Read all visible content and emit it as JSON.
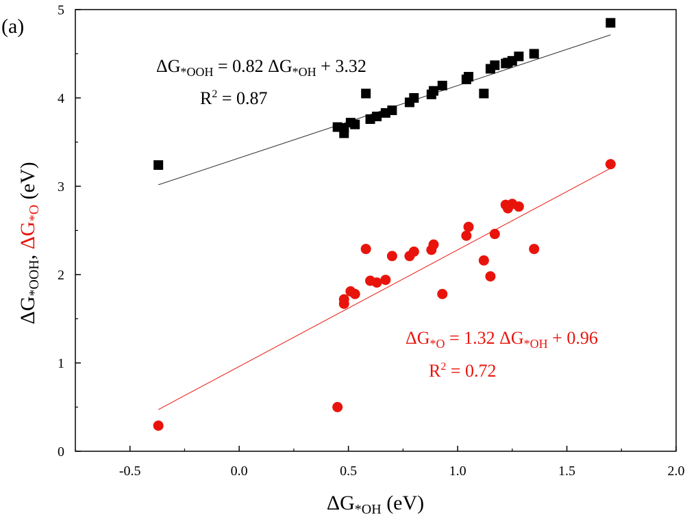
{
  "panel_label": "(a)",
  "chart_data": {
    "type": "scatter",
    "xlim": [
      -0.75,
      2.0
    ],
    "ylim": [
      0,
      5
    ],
    "x_ticks": [
      -0.5,
      0.0,
      0.5,
      1.0,
      1.5,
      2.0
    ],
    "x_tick_labels": [
      "-0.5",
      "0.0",
      "0.5",
      "1.0",
      "1.5",
      "2.0"
    ],
    "y_ticks": [
      0,
      1,
      2,
      3,
      4,
      5
    ],
    "y_tick_labels": [
      "0",
      "1",
      "2",
      "3",
      "4",
      "5"
    ],
    "xlabel": {
      "prefix": "ΔG",
      "sub": "*OH",
      "suffix": " (eV)"
    },
    "ylabel": {
      "part1_prefix": "ΔG",
      "part1_sub": "*OOH",
      "sep": ", ",
      "part2_prefix": "ΔG",
      "part2_sub": "*O",
      "suffix": " (eV)"
    },
    "grid": false,
    "series": [
      {
        "marker": "square",
        "color": "#000000",
        "points": [
          [
            -0.37,
            3.24
          ],
          [
            0.45,
            3.67
          ],
          [
            0.48,
            3.6
          ],
          [
            0.48,
            3.66
          ],
          [
            0.51,
            3.72
          ],
          [
            0.53,
            3.7
          ],
          [
            0.58,
            4.05
          ],
          [
            0.6,
            3.76
          ],
          [
            0.63,
            3.79
          ],
          [
            0.67,
            3.83
          ],
          [
            0.7,
            3.86
          ],
          [
            0.78,
            3.95
          ],
          [
            0.8,
            4.0
          ],
          [
            0.88,
            4.04
          ],
          [
            0.89,
            4.08
          ],
          [
            0.93,
            4.14
          ],
          [
            1.04,
            4.21
          ],
          [
            1.05,
            4.24
          ],
          [
            1.12,
            4.05
          ],
          [
            1.15,
            4.33
          ],
          [
            1.17,
            4.37
          ],
          [
            1.22,
            4.39
          ],
          [
            1.23,
            4.4
          ],
          [
            1.25,
            4.42
          ],
          [
            1.28,
            4.47
          ],
          [
            1.35,
            4.5
          ],
          [
            1.7,
            4.85
          ]
        ],
        "fit": {
          "slope": 0.82,
          "intercept": 3.32,
          "x_range": [
            -0.37,
            1.7
          ]
        },
        "equation": {
          "delta_g": "ΔG",
          "sub_left": "*OOH",
          "mid": " = 0.82 ",
          "sub_right": "*OH",
          "tail": " + 3.32",
          "r2_prefix": "R",
          "r2_sup": "2",
          "r2_value": " = 0.87"
        }
      },
      {
        "marker": "circle",
        "color": "#e8140c",
        "points": [
          [
            -0.37,
            0.29
          ],
          [
            0.45,
            0.5
          ],
          [
            0.48,
            1.67
          ],
          [
            0.48,
            1.72
          ],
          [
            0.51,
            1.81
          ],
          [
            0.53,
            1.78
          ],
          [
            0.58,
            2.29
          ],
          [
            0.6,
            1.93
          ],
          [
            0.63,
            1.91
          ],
          [
            0.67,
            1.94
          ],
          [
            0.7,
            2.21
          ],
          [
            0.78,
            2.21
          ],
          [
            0.8,
            2.26
          ],
          [
            0.88,
            2.28
          ],
          [
            0.89,
            2.34
          ],
          [
            0.93,
            1.78
          ],
          [
            1.04,
            2.44
          ],
          [
            1.05,
            2.54
          ],
          [
            1.12,
            2.16
          ],
          [
            1.15,
            1.98
          ],
          [
            1.17,
            2.46
          ],
          [
            1.22,
            2.79
          ],
          [
            1.23,
            2.75
          ],
          [
            1.25,
            2.8
          ],
          [
            1.28,
            2.77
          ],
          [
            1.35,
            2.29
          ],
          [
            1.7,
            3.25
          ]
        ],
        "fit": {
          "slope": 1.32,
          "intercept": 0.96,
          "x_range": [
            -0.37,
            1.7
          ]
        },
        "equation": {
          "delta_g": "ΔG",
          "sub_left": "*O",
          "mid": " = 1.32 ",
          "sub_right": "*OH",
          "tail": " + 0.96",
          "r2_prefix": "R",
          "r2_sup": "2",
          "r2_value": " = 0.72"
        }
      }
    ]
  }
}
